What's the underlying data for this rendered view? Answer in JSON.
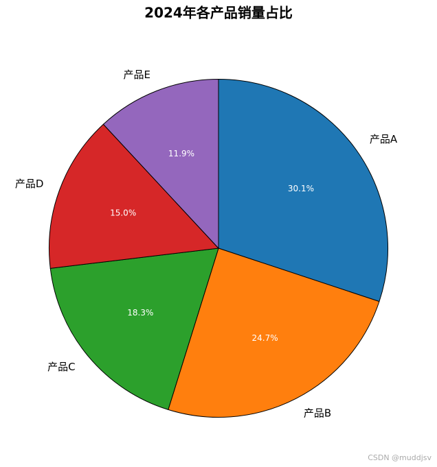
{
  "chart_data": {
    "type": "pie",
    "title": "2024年各产品销量占比",
    "categories": [
      "产品A",
      "产品B",
      "产品C",
      "产品D",
      "产品E"
    ],
    "values": [
      30.1,
      24.7,
      18.3,
      15.0,
      11.9
    ],
    "value_labels": [
      "30.1%",
      "24.7%",
      "18.3%",
      "15.0%",
      "11.9%"
    ],
    "colors": [
      "#1f77b4",
      "#ff7f0e",
      "#2ca02c",
      "#d62728",
      "#9467bd"
    ]
  },
  "watermark": "CSDN @muddjsv"
}
